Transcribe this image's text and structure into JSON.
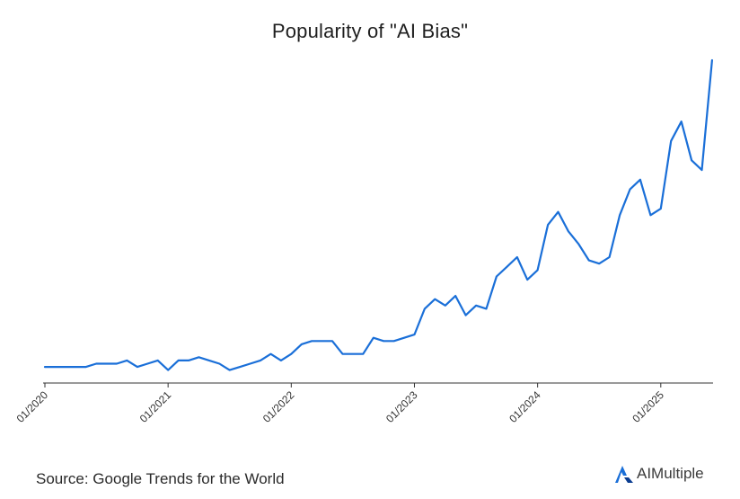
{
  "chart_data": {
    "type": "line",
    "title": "Popularity of \"AI Bias\"",
    "xlabel": "",
    "ylabel": "",
    "x_ticks": [
      "01/2020",
      "01/2021",
      "01/2022",
      "01/2023",
      "01/2024",
      "01/2025"
    ],
    "grid": false,
    "legend": "none",
    "line_color": "#1a6fd8",
    "series": [
      {
        "x": [
          "2020-01",
          "2020-02",
          "2020-03",
          "2020-04",
          "2020-05",
          "2020-06",
          "2020-07",
          "2020-08",
          "2020-09",
          "2020-10",
          "2020-11",
          "2020-12",
          "2021-01",
          "2021-02",
          "2021-03",
          "2021-04",
          "2021-05",
          "2021-06",
          "2021-07",
          "2021-08",
          "2021-09",
          "2021-10",
          "2021-11",
          "2021-12",
          "2022-01",
          "2022-02",
          "2022-03",
          "2022-04",
          "2022-05",
          "2022-06",
          "2022-07",
          "2022-08",
          "2022-09",
          "2022-10",
          "2022-11",
          "2022-12",
          "2023-01",
          "2023-02",
          "2023-03",
          "2023-04",
          "2023-05",
          "2023-06",
          "2023-07",
          "2023-08",
          "2023-09",
          "2023-10",
          "2023-11",
          "2023-12",
          "2024-01",
          "2024-02",
          "2024-03",
          "2024-04",
          "2024-05",
          "2024-06",
          "2024-07",
          "2024-08",
          "2024-09",
          "2024-10",
          "2024-11",
          "2024-12",
          "2025-01",
          "2025-02",
          "2025-03",
          "2025-04",
          "2025-05",
          "2025-06"
        ],
        "values": [
          5,
          5,
          5,
          5,
          5,
          6,
          6,
          6,
          7,
          5,
          6,
          7,
          4,
          7,
          7,
          8,
          7,
          6,
          4,
          5,
          6,
          7,
          9,
          7,
          9,
          12,
          13,
          13,
          13,
          9,
          9,
          9,
          14,
          13,
          13,
          14,
          15,
          23,
          26,
          24,
          27,
          21,
          24,
          23,
          33,
          36,
          39,
          32,
          35,
          49,
          53,
          47,
          43,
          38,
          37,
          39,
          52,
          60,
          63,
          52,
          54,
          75,
          81,
          69,
          66,
          100
        ]
      }
    ]
  },
  "footer": {
    "source": "Source: Google Trends for the World",
    "brand_name": "AIMultiple"
  }
}
